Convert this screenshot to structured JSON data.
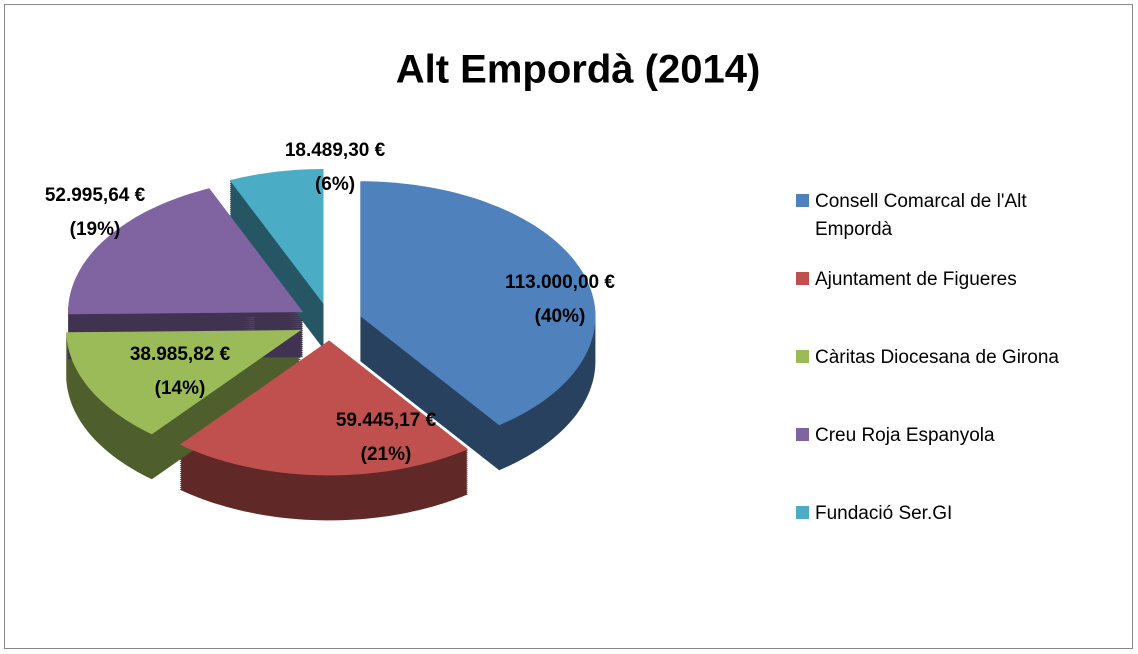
{
  "chart_data": {
    "type": "pie",
    "title": "Alt Empordà (2014)",
    "categories": [
      "Consell Comarcal de l'Alt Empordà",
      "Ajuntament de Figueres",
      "Càritas Diocesana de Girona",
      "Creu Roja Espanyola",
      "Fundació Ser.GI"
    ],
    "values": [
      113000.0,
      59445.17,
      38985.82,
      52995.64,
      18489.3
    ],
    "value_labels": [
      "113.000,00 €",
      "59.445,17 €",
      "38.985,82 €",
      "52.995,64 €",
      "18.489,30 €"
    ],
    "percents": [
      40,
      21,
      14,
      19,
      6
    ],
    "percent_labels": [
      "(40%)",
      "(21%)",
      "(14%)",
      "(19%)",
      "(6%)"
    ],
    "colors": [
      "#4f81bd",
      "#c0504d",
      "#9bbb59",
      "#8064a2",
      "#4bacc6"
    ],
    "legend": "right"
  }
}
